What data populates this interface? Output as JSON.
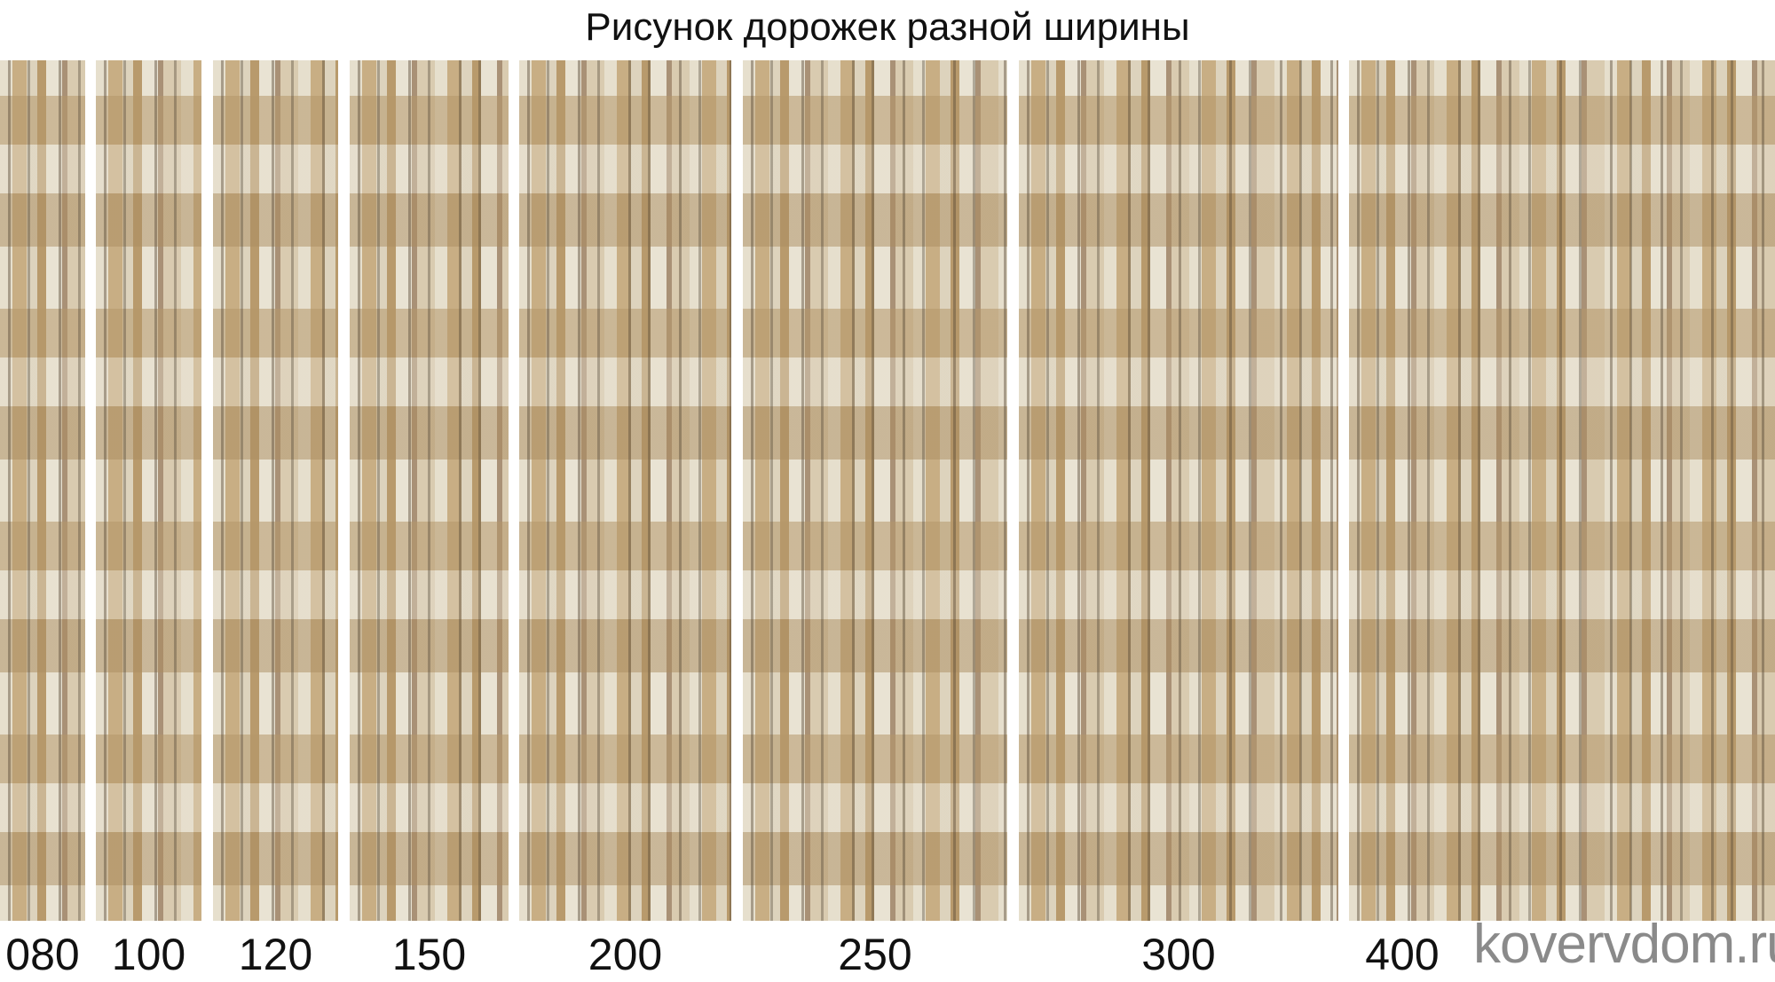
{
  "title": "Рисунок дорожек разной ширины",
  "runners": [
    {
      "width_label": "080"
    },
    {
      "width_label": "100"
    },
    {
      "width_label": "120"
    },
    {
      "width_label": "150"
    },
    {
      "width_label": "200"
    },
    {
      "width_label": "250"
    },
    {
      "width_label": "300"
    },
    {
      "width_label": "400"
    }
  ],
  "watermark": "kovervdom.ru",
  "colors": {
    "pattern_light": "#e6dfcd",
    "pattern_tan": "#c8ae84",
    "pattern_dark": "#6e5f4a",
    "watermark": "#8a8a8a"
  }
}
